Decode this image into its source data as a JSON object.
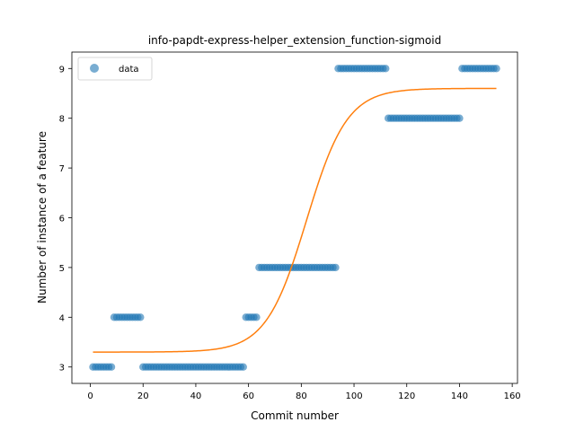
{
  "chart_data": {
    "type": "scatter",
    "title": "info-papdt-express-helper_extension_function-sigmoid",
    "xlabel": "Commit number",
    "ylabel": "Number of instance of a feature",
    "xlim": [
      -7,
      162
    ],
    "ylim": [
      2.67,
      9.33
    ],
    "xticks": [
      0,
      20,
      40,
      60,
      80,
      100,
      120,
      140,
      160
    ],
    "yticks": [
      3,
      4,
      5,
      6,
      7,
      8,
      9
    ],
    "grid": false,
    "legend": {
      "placement": "top-left",
      "entries": [
        "data"
      ]
    },
    "colors": {
      "data": "#1f77b4",
      "fit": "#ff7f0e"
    },
    "series": [
      {
        "name": "data",
        "kind": "scatter",
        "segments": [
          {
            "x_start": 1,
            "x_end": 8,
            "y": 3
          },
          {
            "x_start": 9,
            "x_end": 19,
            "y": 4
          },
          {
            "x_start": 20,
            "x_end": 58,
            "y": 3
          },
          {
            "x_start": 59,
            "x_end": 63,
            "y": 4
          },
          {
            "x_start": 64,
            "x_end": 93,
            "y": 5
          },
          {
            "x_start": 94,
            "x_end": 112,
            "y": 9
          },
          {
            "x_start": 113,
            "x_end": 140,
            "y": 8
          },
          {
            "x_start": 141,
            "x_end": 154,
            "y": 9
          }
        ]
      },
      {
        "kind": "line",
        "model": "sigmoid",
        "params": {
          "lower": 3.3,
          "upper": 8.6,
          "midpoint": 82,
          "rate": 0.13
        },
        "x_range": [
          1,
          154
        ]
      }
    ]
  }
}
